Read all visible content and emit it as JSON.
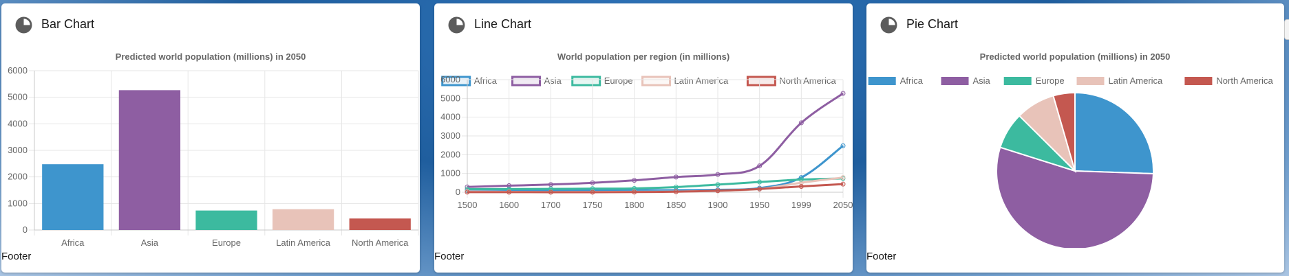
{
  "cards": [
    {
      "title": "Bar Chart",
      "footer": "Footer",
      "icon": "pie-chart-icon"
    },
    {
      "title": "Line Chart",
      "footer": "Footer",
      "icon": "pie-chart-icon"
    },
    {
      "title": "Pie Chart",
      "footer": "Footer",
      "icon": "pie-chart-icon"
    }
  ],
  "chart_data": [
    {
      "type": "bar",
      "title": "Predicted world population (millions) in 2050",
      "categories": [
        "Africa",
        "Asia",
        "Europe",
        "Latin America",
        "North America"
      ],
      "values": [
        2478,
        5267,
        734,
        784,
        433
      ],
      "colors": [
        "#3e95cd",
        "#8e5ea2",
        "#3cba9f",
        "#e8c3b9",
        "#c45850"
      ],
      "ylim": [
        0,
        6000
      ],
      "yticks": [
        0,
        1000,
        2000,
        3000,
        4000,
        5000,
        6000
      ],
      "legend": "none",
      "grid": true
    },
    {
      "type": "line",
      "title": "World population per region (in millions)",
      "categories": [
        "1500",
        "1600",
        "1700",
        "1750",
        "1800",
        "1850",
        "1900",
        "1950",
        "1999",
        "2050"
      ],
      "series": [
        {
          "name": "Africa",
          "color": "#3e95cd",
          "values": [
            86,
            114,
            106,
            106,
            107,
            111,
            133,
            221,
            783,
            2478
          ]
        },
        {
          "name": "Asia",
          "color": "#8e5ea2",
          "values": [
            282,
            350,
            411,
            502,
            635,
            809,
            947,
            1402,
            3700,
            5267
          ]
        },
        {
          "name": "Europe",
          "color": "#3cba9f",
          "values": [
            168,
            170,
            178,
            190,
            203,
            276,
            408,
            547,
            675,
            734
          ]
        },
        {
          "name": "Latin America",
          "color": "#e8c3b9",
          "values": [
            40,
            20,
            10,
            16,
            24,
            38,
            74,
            167,
            508,
            784
          ]
        },
        {
          "name": "North America",
          "color": "#c45850",
          "values": [
            6,
            3,
            2,
            2,
            7,
            26,
            82,
            172,
            312,
            433
          ]
        }
      ],
      "ylim": [
        0,
        6000
      ],
      "yticks": [
        0,
        1000,
        2000,
        3000,
        4000,
        5000,
        6000
      ],
      "legend": "top",
      "grid": true
    },
    {
      "type": "pie",
      "title": "Predicted world population (millions) in 2050",
      "categories": [
        "Africa",
        "Asia",
        "Europe",
        "Latin America",
        "North America"
      ],
      "values": [
        2478,
        5267,
        734,
        784,
        433
      ],
      "colors": [
        "#3e95cd",
        "#8e5ea2",
        "#3cba9f",
        "#e8c3b9",
        "#c45850"
      ],
      "legend": "top"
    }
  ]
}
